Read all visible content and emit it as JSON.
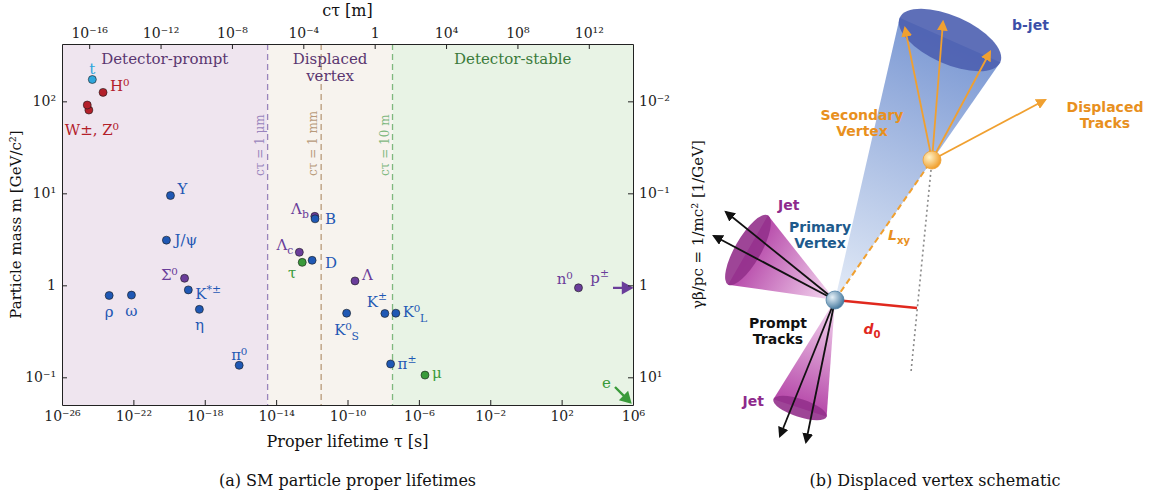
{
  "chart_data": {
    "type": "scatter",
    "log": true,
    "x_label": "Proper lifetime τ [s]",
    "y_label": "Particle mass m [GeV/c²]",
    "x2_label": "cτ [m]",
    "y2_label": "γβ/pc = 1/mc² [1/GeV]",
    "xlim": [
      1e-26,
      1000000.0
    ],
    "xticks": [
      {
        "value": 1e-26,
        "label": "10⁻²⁶"
      },
      {
        "value": 1e-22,
        "label": "10⁻²²"
      },
      {
        "value": 1e-18,
        "label": "10⁻¹⁸"
      },
      {
        "value": 1e-14,
        "label": "10⁻¹⁴"
      },
      {
        "value": 1e-10,
        "label": "10⁻¹⁰"
      },
      {
        "value": 1e-06,
        "label": "10⁻⁶"
      },
      {
        "value": 0.01,
        "label": "10⁻²"
      },
      {
        "value": 100,
        "label": "10²"
      },
      {
        "value": 1000000.0,
        "label": "10⁶"
      }
    ],
    "x2lim": [
      2.998e-18,
      299800000000000.0
    ],
    "x2ticks": [
      {
        "value": 1e-16,
        "label": "10⁻¹⁶"
      },
      {
        "value": 1e-12,
        "label": "10⁻¹²"
      },
      {
        "value": 1e-08,
        "label": "10⁻⁸"
      },
      {
        "value": 0.0001,
        "label": "10⁻⁴"
      },
      1,
      {
        "value": 10000.0,
        "label": "10⁴"
      },
      {
        "value": 100000000.0,
        "label": "10⁸"
      },
      {
        "value": 1000000000000.0,
        "label": "10¹²"
      }
    ],
    "ylim": [
      0.05,
      420
    ],
    "yticks": [
      {
        "value": 0.1,
        "label": "10⁻¹"
      },
      1,
      {
        "value": 10,
        "label": "10¹"
      },
      {
        "value": 100,
        "label": "10²"
      }
    ],
    "y2lim": [
      20,
      0.002381
    ],
    "y2ticks": [
      {
        "value": 10,
        "label": "10¹"
      },
      1,
      {
        "value": 0.1,
        "label": "10⁻¹"
      },
      {
        "value": 0.01,
        "label": "10⁻²"
      }
    ],
    "regions": [
      {
        "label": "Detector-prompt",
        "from": 1e-26,
        "to": 3.336e-15,
        "color": "#efe5ef"
      },
      {
        "label": "Displaced vertex",
        "from": 3.336e-15,
        "to": 3.336e-08,
        "color": "#f7f3ee"
      },
      {
        "label": "Detector-stable",
        "from": 3.336e-08,
        "to": 1000000.0,
        "color": "#e8f3e5"
      }
    ],
    "reference_lines": [
      {
        "x": 3.336e-15,
        "label": "cτ = 1 μm",
        "color": "#9a85bd"
      },
      {
        "x": 3.336e-12,
        "label": "cτ = 1 mm",
        "color": "#b89a7a"
      },
      {
        "x": 3.336e-08,
        "label": "cτ = 10 m",
        "color": "#7fb87f"
      }
    ],
    "points": [
      {
        "label": "W±, Z⁰",
        "x": 3.2e-25,
        "y": 80.4,
        "color": "#b3202a"
      },
      {
        "x": 2.6e-25,
        "y": 91.2,
        "color": "#b3202a"
      },
      {
        "label": "t",
        "x": 5e-25,
        "y": 172.7,
        "color": "#2ea6dc"
      },
      {
        "label": "H⁰",
        "x": 2e-24,
        "y": 125.1,
        "color": "#b3202a"
      },
      {
        "label": "Υ",
        "x": 1.2e-20,
        "y": 9.46,
        "color": "#1f58b4"
      },
      {
        "label": "J/ψ",
        "x": 7.1e-21,
        "y": 3.097,
        "color": "#1f58b4"
      },
      {
        "label": "Σ⁰",
        "x": 7.4e-20,
        "y": 1.193,
        "color": "#6a3d9a"
      },
      {
        "label": "K",
        "sup": "*±",
        "x": 1.2e-19,
        "y": 0.892,
        "color": "#1f58b4"
      },
      {
        "label": "ρ",
        "x": 4.4e-24,
        "y": 0.775,
        "color": "#1f58b4"
      },
      {
        "label": "ω",
        "x": 7.8e-23,
        "y": 0.783,
        "color": "#1f58b4"
      },
      {
        "label": "η",
        "x": 5e-19,
        "y": 0.548,
        "color": "#1f58b4"
      },
      {
        "label": "π⁰",
        "x": 8.5e-17,
        "y": 0.135,
        "color": "#1f58b4"
      },
      {
        "label": "Λ",
        "sub": "c",
        "x": 2e-13,
        "y": 2.286,
        "color": "#6a3d9a"
      },
      {
        "label": "τ",
        "x": 2.9e-13,
        "y": 1.777,
        "color": "#3a9a3a"
      },
      {
        "label": "D",
        "x": 1.04e-12,
        "y": 1.87,
        "color": "#1f58b4"
      },
      {
        "label": "Λ",
        "sub": "b",
        "x": 1.47e-12,
        "y": 5.62,
        "color": "#6a3d9a"
      },
      {
        "label": "B",
        "x": 1.52e-12,
        "y": 5.28,
        "color": "#1f58b4"
      },
      {
        "label": "Λ",
        "x": 2.63e-10,
        "y": 1.116,
        "color": "#6a3d9a"
      },
      {
        "label": "K⁰",
        "sub": "S",
        "x": 8.95e-11,
        "y": 0.4976,
        "color": "#1f58b4"
      },
      {
        "label": "K",
        "sup": "±",
        "x": 1.24e-08,
        "y": 0.4937,
        "color": "#1f58b4"
      },
      {
        "label": "K⁰",
        "sub": "L",
        "x": 5.12e-08,
        "y": 0.4976,
        "color": "#1f58b4"
      },
      {
        "label": "π",
        "sup": "±",
        "x": 2.6e-08,
        "y": 0.1396,
        "color": "#1f58b4"
      },
      {
        "label": "μ",
        "x": 2.2e-06,
        "y": 0.1057,
        "color": "#3a9a3a"
      },
      {
        "label": "n⁰",
        "x": 879.4,
        "y": 0.9396,
        "color": "#6a3d9a"
      },
      {
        "label": "p",
        "sup": "±",
        "x": null,
        "y": 0.938,
        "color": "#6a3d9a",
        "marker": "arrow"
      },
      {
        "label": "e",
        "x": null,
        "y": 0.000511,
        "color": "#3a9a3a",
        "marker": "arrow"
      }
    ]
  },
  "diagram": {
    "jets": [
      "Jet",
      "Jet"
    ],
    "prompt_tracks": "Prompt Tracks",
    "primary_vertex": "Primary Vertex",
    "b_jet": "b-jet",
    "secondary_vertex": "Secondary Vertex",
    "displaced_tracks": "Displaced Tracks",
    "decay_length": {
      "label": "L",
      "sub": "xy"
    },
    "impact_parameter": {
      "label": "d",
      "sub": "0"
    }
  },
  "captions": [
    "(a) SM particle proper lifetimes",
    "(b) Displaced vertex schematic"
  ]
}
